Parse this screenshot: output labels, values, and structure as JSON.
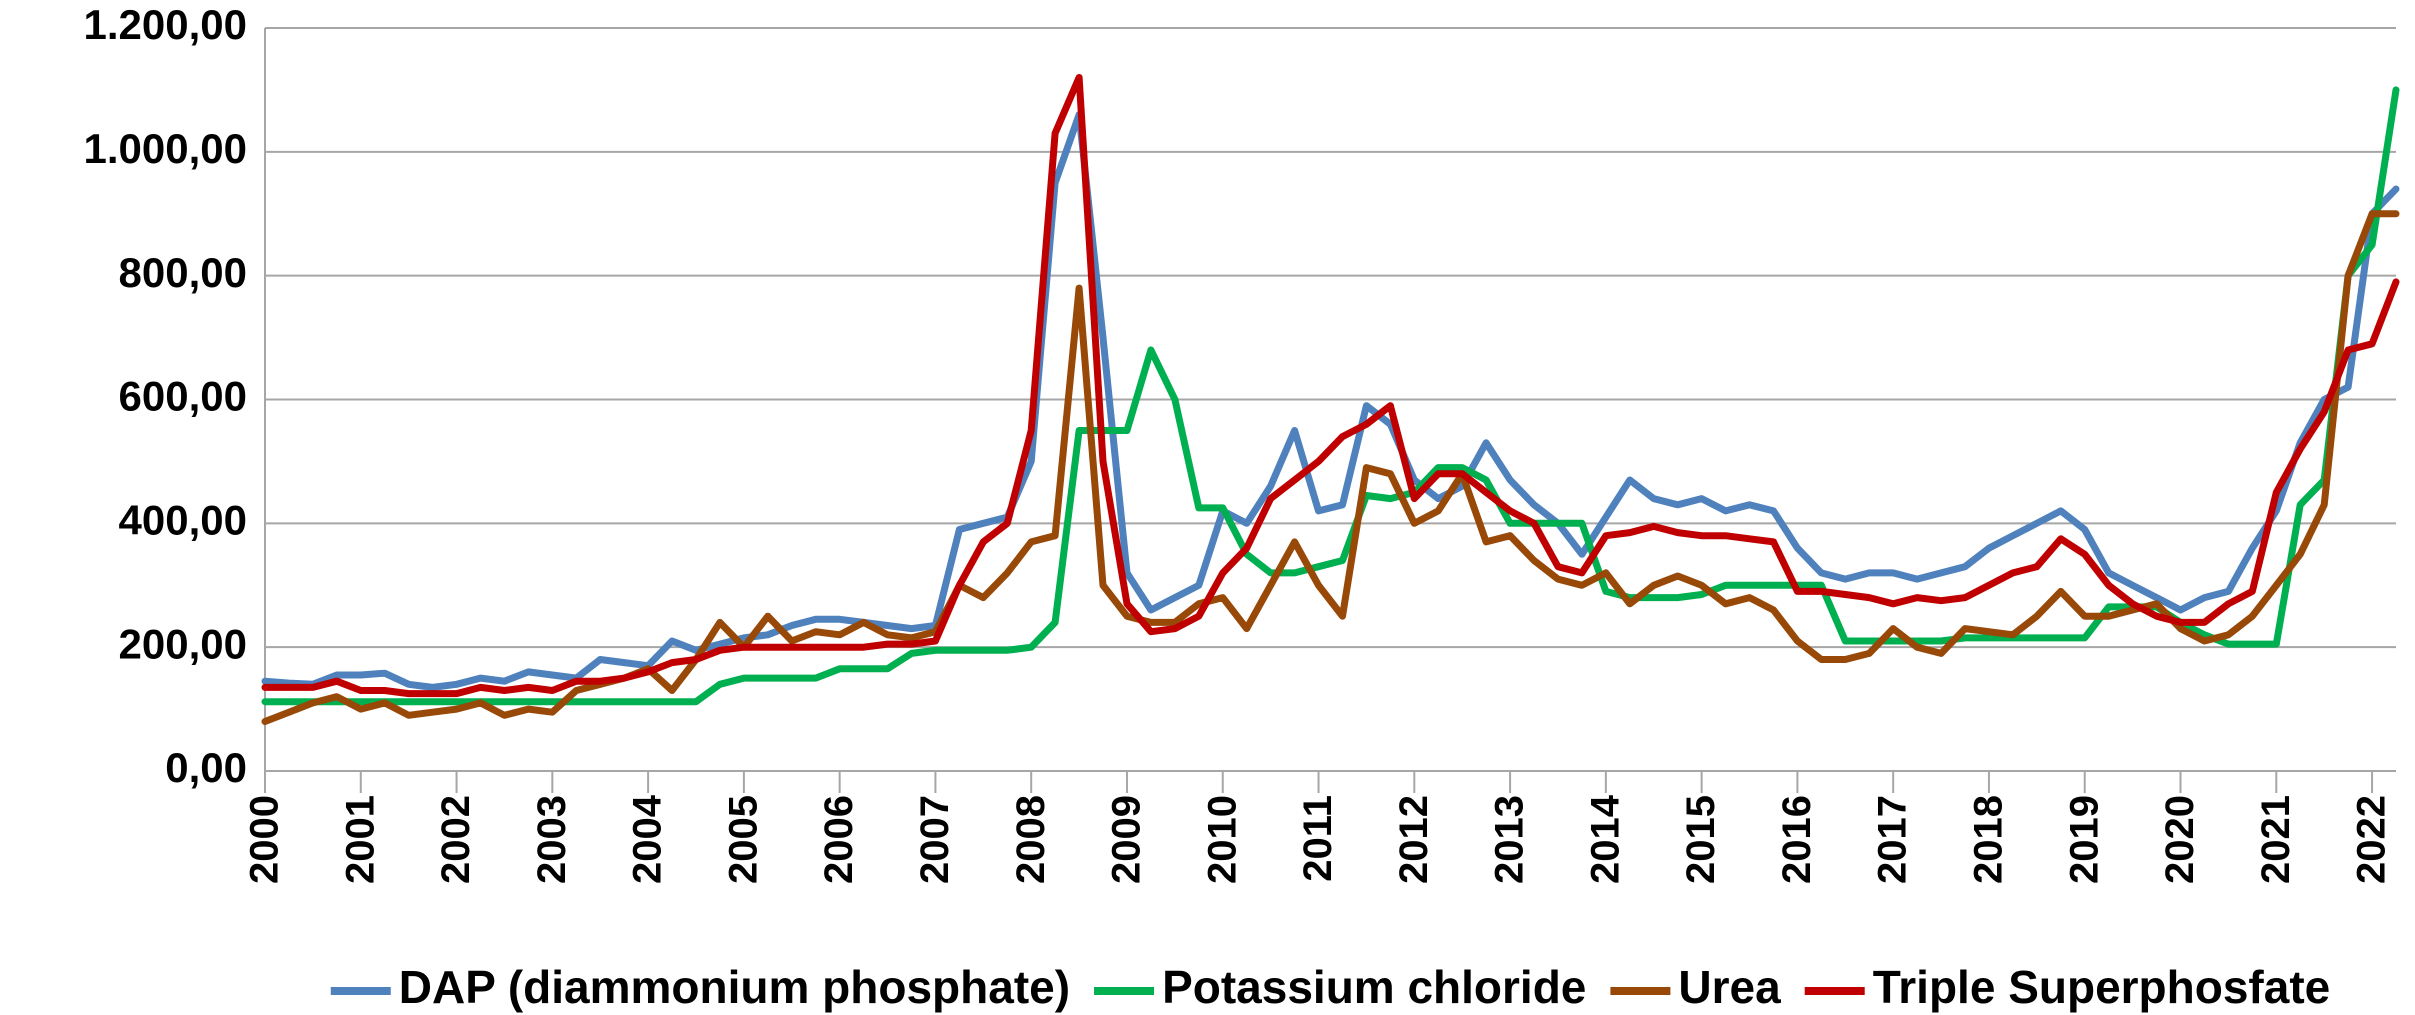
{
  "chart_data": {
    "type": "line",
    "x": [
      2000,
      2000.25,
      2000.5,
      2000.75,
      2001,
      2001.25,
      2001.5,
      2001.75,
      2002,
      2002.25,
      2002.5,
      2002.75,
      2003,
      2003.25,
      2003.5,
      2003.75,
      2004,
      2004.25,
      2004.5,
      2004.75,
      2005,
      2005.25,
      2005.5,
      2005.75,
      2006,
      2006.25,
      2006.5,
      2006.75,
      2007,
      2007.25,
      2007.5,
      2007.75,
      2008,
      2008.25,
      2008.5,
      2008.75,
      2009,
      2009.25,
      2009.5,
      2009.75,
      2010,
      2010.25,
      2010.5,
      2010.75,
      2011,
      2011.25,
      2011.5,
      2011.75,
      2012,
      2012.25,
      2012.5,
      2012.75,
      2013,
      2013.25,
      2013.5,
      2013.75,
      2014,
      2014.25,
      2014.5,
      2014.75,
      2015,
      2015.25,
      2015.5,
      2015.75,
      2016,
      2016.25,
      2016.5,
      2016.75,
      2017,
      2017.25,
      2017.5,
      2017.75,
      2018,
      2018.25,
      2018.5,
      2018.75,
      2019,
      2019.25,
      2019.5,
      2019.75,
      2020,
      2020.25,
      2020.5,
      2020.75,
      2021,
      2021.25,
      2021.5,
      2021.75,
      2022,
      2022.25
    ],
    "series": [
      {
        "name": "DAP (diammonium phosphate)",
        "color": "#4f81bd",
        "values": [
          145,
          142,
          140,
          155,
          155,
          158,
          140,
          135,
          140,
          150,
          145,
          160,
          155,
          150,
          180,
          175,
          170,
          210,
          195,
          205,
          215,
          220,
          235,
          245,
          245,
          240,
          235,
          230,
          235,
          390,
          400,
          410,
          500,
          950,
          1060,
          700,
          320,
          260,
          280,
          300,
          420,
          400,
          460,
          550,
          420,
          430,
          590,
          560,
          470,
          440,
          460,
          530,
          470,
          430,
          400,
          350,
          410,
          470,
          440,
          430,
          440,
          420,
          430,
          420,
          360,
          320,
          310,
          320,
          320,
          310,
          320,
          330,
          360,
          380,
          400,
          420,
          390,
          320,
          300,
          280,
          260,
          280,
          290,
          360,
          420,
          530,
          600,
          620,
          900,
          940
        ]
      },
      {
        "name": "Potassium chloride",
        "color": "#00b050",
        "values": [
          112,
          112,
          112,
          112,
          112,
          112,
          112,
          112,
          112,
          112,
          112,
          112,
          112,
          112,
          112,
          112,
          112,
          112,
          112,
          140,
          150,
          150,
          150,
          150,
          165,
          165,
          165,
          190,
          195,
          195,
          195,
          195,
          200,
          240,
          550,
          550,
          550,
          680,
          600,
          425,
          425,
          350,
          320,
          320,
          330,
          340,
          445,
          440,
          450,
          490,
          490,
          470,
          400,
          400,
          400,
          400,
          290,
          280,
          280,
          280,
          285,
          300,
          300,
          300,
          300,
          300,
          210,
          210,
          210,
          210,
          210,
          215,
          215,
          215,
          215,
          215,
          215,
          265,
          265,
          265,
          240,
          220,
          205,
          205,
          205,
          430,
          470,
          800,
          850,
          1100
        ]
      },
      {
        "name": "Urea",
        "color": "#984807",
        "values": [
          80,
          95,
          110,
          120,
          100,
          110,
          90,
          95,
          100,
          110,
          90,
          100,
          95,
          130,
          140,
          150,
          165,
          130,
          180,
          240,
          200,
          250,
          210,
          225,
          220,
          240,
          220,
          215,
          225,
          300,
          280,
          320,
          370,
          380,
          780,
          300,
          250,
          240,
          240,
          270,
          280,
          230,
          300,
          370,
          300,
          250,
          490,
          480,
          400,
          420,
          480,
          370,
          380,
          340,
          310,
          300,
          320,
          270,
          300,
          315,
          300,
          270,
          280,
          260,
          210,
          180,
          180,
          190,
          230,
          200,
          190,
          230,
          225,
          220,
          250,
          290,
          250,
          250,
          260,
          270,
          230,
          210,
          220,
          250,
          300,
          350,
          430,
          800,
          900,
          900
        ]
      },
      {
        "name": "Triple Superphosfate",
        "color": "#c00000",
        "values": [
          135,
          135,
          135,
          145,
          130,
          130,
          125,
          125,
          125,
          135,
          130,
          135,
          130,
          145,
          145,
          150,
          160,
          175,
          180,
          195,
          200,
          200,
          200,
          200,
          200,
          200,
          205,
          205,
          210,
          300,
          370,
          400,
          550,
          1030,
          1120,
          500,
          270,
          225,
          230,
          250,
          320,
          360,
          440,
          470,
          500,
          540,
          560,
          590,
          440,
          480,
          480,
          450,
          420,
          400,
          330,
          320,
          380,
          385,
          395,
          385,
          380,
          380,
          375,
          370,
          290,
          290,
          285,
          280,
          270,
          280,
          275,
          280,
          300,
          320,
          330,
          375,
          350,
          300,
          270,
          250,
          240,
          240,
          270,
          290,
          450,
          520,
          580,
          680,
          690,
          790
        ]
      }
    ],
    "xlim": [
      2000,
      2022.25
    ],
    "xticks": [
      2000,
      2001,
      2002,
      2003,
      2004,
      2005,
      2006,
      2007,
      2008,
      2009,
      2010,
      2011,
      2012,
      2013,
      2014,
      2015,
      2016,
      2017,
      2018,
      2019,
      2020,
      2021,
      2022
    ],
    "ylim": [
      0,
      1200
    ],
    "yticks": [
      {
        "value": 0,
        "label": "0,00"
      },
      {
        "value": 200,
        "label": "200,00"
      },
      {
        "value": 400,
        "label": "400,00"
      },
      {
        "value": 600,
        "label": "600,00"
      },
      {
        "value": 800,
        "label": "800,00"
      },
      {
        "value": 1000,
        "label": "1.000,00"
      },
      {
        "value": 1200,
        "label": "1.200,00"
      }
    ],
    "grid": true,
    "legend": "bottom"
  }
}
